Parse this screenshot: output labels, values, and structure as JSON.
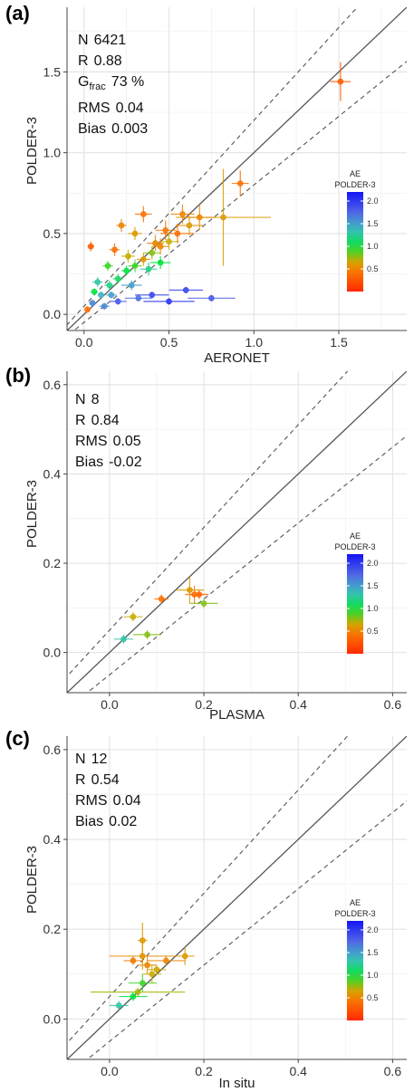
{
  "chart_data": [
    {
      "type": "scatter",
      "panel_label": "(a)",
      "xlabel": "AERONET",
      "ylabel": "POLDER-3",
      "xlim": [
        -0.1,
        1.9
      ],
      "ylim": [
        -0.1,
        1.9
      ],
      "xticks": [
        "0.0",
        "0.5",
        "1.0",
        "1.5"
      ],
      "yticks": [
        "0.0",
        "0.5",
        "1.0",
        "1.5"
      ],
      "xtick_values": [
        0,
        0.5,
        1.0,
        1.5
      ],
      "ytick_values": [
        0,
        0.5,
        1.0,
        1.5
      ],
      "grid": true,
      "lines": [
        "y = x",
        "y = x ± (0.05 + 0.15x)"
      ],
      "stats": [
        {
          "key": "N",
          "value": "6421"
        },
        {
          "key": "R",
          "value": "0.88"
        },
        {
          "key": "G",
          "sub": "frac",
          "value": "73 %"
        },
        {
          "key": "RMS",
          "value": "0.04"
        },
        {
          "key": "Bias",
          "value": "0.003"
        }
      ],
      "colorbar": {
        "title_line1": "AE",
        "title_line2": "POLDER-3",
        "ticks": [
          "2.0",
          "1.5",
          "1.0",
          "0.5"
        ],
        "tick_values": [
          2.0,
          1.5,
          1.0,
          0.5
        ],
        "min": 0.0,
        "max": 2.2,
        "position": "right"
      },
      "points": [
        {
          "x": 1.51,
          "y": 1.44,
          "xerr": 0.06,
          "yerr": 0.12,
          "ae": 0.3
        },
        {
          "x": 0.82,
          "y": 0.6,
          "xerr": 0.28,
          "yerr": 0.3,
          "ae": 0.6
        },
        {
          "x": 0.92,
          "y": 0.81,
          "xerr": 0.05,
          "yerr": 0.08,
          "ae": 0.4
        },
        {
          "x": 0.68,
          "y": 0.6,
          "xerr": 0.1,
          "yerr": 0.08,
          "ae": 0.5
        },
        {
          "x": 0.62,
          "y": 0.55,
          "xerr": 0.08,
          "yerr": 0.06,
          "ae": 0.6
        },
        {
          "x": 0.55,
          "y": 0.5,
          "xerr": 0.1,
          "yerr": 0.06,
          "ae": 0.4
        },
        {
          "x": 0.5,
          "y": 0.45,
          "xerr": 0.06,
          "yerr": 0.05,
          "ae": 0.7
        },
        {
          "x": 0.45,
          "y": 0.42,
          "xerr": 0.05,
          "yerr": 0.05,
          "ae": 0.5
        },
        {
          "x": 0.4,
          "y": 0.38,
          "xerr": 0.05,
          "yerr": 0.04,
          "ae": 0.8
        },
        {
          "x": 0.35,
          "y": 0.34,
          "xerr": 0.04,
          "yerr": 0.04,
          "ae": 0.6
        },
        {
          "x": 0.3,
          "y": 0.3,
          "xerr": 0.04,
          "yerr": 0.04,
          "ae": 0.9
        },
        {
          "x": 0.25,
          "y": 0.27,
          "xerr": 0.03,
          "yerr": 0.03,
          "ae": 1.0
        },
        {
          "x": 0.2,
          "y": 0.22,
          "xerr": 0.03,
          "yerr": 0.03,
          "ae": 1.1
        },
        {
          "x": 0.15,
          "y": 0.18,
          "xerr": 0.03,
          "yerr": 0.03,
          "ae": 1.2
        },
        {
          "x": 0.1,
          "y": 0.12,
          "xerr": 0.02,
          "yerr": 0.02,
          "ae": 1.4
        },
        {
          "x": 0.05,
          "y": 0.07,
          "xerr": 0.02,
          "yerr": 0.02,
          "ae": 1.6
        },
        {
          "x": 0.42,
          "y": 0.44,
          "xerr": 0.05,
          "yerr": 0.05,
          "ae": 0.5
        },
        {
          "x": 0.18,
          "y": 0.4,
          "xerr": 0.03,
          "yerr": 0.04,
          "ae": 0.4
        },
        {
          "x": 0.04,
          "y": 0.42,
          "xerr": 0.02,
          "yerr": 0.03,
          "ae": 0.3
        },
        {
          "x": 0.3,
          "y": 0.5,
          "xerr": 0.04,
          "yerr": 0.04,
          "ae": 0.6
        },
        {
          "x": 0.35,
          "y": 0.62,
          "xerr": 0.05,
          "yerr": 0.05,
          "ae": 0.4
        },
        {
          "x": 0.22,
          "y": 0.55,
          "xerr": 0.03,
          "yerr": 0.04,
          "ae": 0.5
        },
        {
          "x": 0.6,
          "y": 0.15,
          "xerr": 0.1,
          "yerr": 0.02,
          "ae": 1.9
        },
        {
          "x": 0.75,
          "y": 0.1,
          "xerr": 0.14,
          "yerr": 0.02,
          "ae": 1.8
        },
        {
          "x": 0.5,
          "y": 0.08,
          "xerr": 0.15,
          "yerr": 0.02,
          "ae": 2.0
        },
        {
          "x": 0.4,
          "y": 0.12,
          "xerr": 0.1,
          "yerr": 0.02,
          "ae": 1.9
        },
        {
          "x": 0.32,
          "y": 0.1,
          "xerr": 0.08,
          "yerr": 0.02,
          "ae": 1.7
        },
        {
          "x": 0.28,
          "y": 0.18,
          "xerr": 0.06,
          "yerr": 0.03,
          "ae": 1.5
        },
        {
          "x": 0.2,
          "y": 0.08,
          "xerr": 0.05,
          "yerr": 0.02,
          "ae": 1.8
        },
        {
          "x": 0.12,
          "y": 0.05,
          "xerr": 0.03,
          "yerr": 0.02,
          "ae": 1.6
        },
        {
          "x": 0.08,
          "y": 0.2,
          "xerr": 0.03,
          "yerr": 0.03,
          "ae": 1.3
        },
        {
          "x": 0.14,
          "y": 0.3,
          "xerr": 0.03,
          "yerr": 0.03,
          "ae": 0.9
        },
        {
          "x": 0.26,
          "y": 0.36,
          "xerr": 0.04,
          "yerr": 0.04,
          "ae": 0.7
        },
        {
          "x": 0.48,
          "y": 0.52,
          "xerr": 0.06,
          "yerr": 0.06,
          "ae": 0.45
        },
        {
          "x": 0.58,
          "y": 0.62,
          "xerr": 0.07,
          "yerr": 0.06,
          "ae": 0.5
        },
        {
          "x": 0.38,
          "y": 0.28,
          "xerr": 0.05,
          "yerr": 0.04,
          "ae": 1.2
        },
        {
          "x": 0.45,
          "y": 0.32,
          "xerr": 0.06,
          "yerr": 0.04,
          "ae": 1.0
        },
        {
          "x": 0.02,
          "y": 0.03,
          "xerr": 0.01,
          "yerr": 0.02,
          "ae": 0.4
        },
        {
          "x": 0.06,
          "y": 0.14,
          "xerr": 0.02,
          "yerr": 0.02,
          "ae": 1.0
        },
        {
          "x": 0.16,
          "y": 0.12,
          "xerr": 0.03,
          "yerr": 0.02,
          "ae": 1.5
        }
      ]
    },
    {
      "type": "scatter",
      "panel_label": "(b)",
      "xlabel": "PLASMA",
      "ylabel": "POLDER-3",
      "xlim": [
        -0.09,
        0.63
      ],
      "ylim": [
        -0.09,
        0.63
      ],
      "xticks": [
        "0.0",
        "0.2",
        "0.4",
        "0.6"
      ],
      "yticks": [
        "0.0",
        "0.2",
        "0.4",
        "0.6"
      ],
      "xtick_values": [
        0,
        0.2,
        0.4,
        0.6
      ],
      "ytick_values": [
        0,
        0.2,
        0.4,
        0.6
      ],
      "grid": true,
      "lines": [
        "y = x",
        "y = x ± (0.05 + 0.15x)"
      ],
      "stats": [
        {
          "key": "N",
          "value": "8"
        },
        {
          "key": "R",
          "value": "0.84"
        },
        {
          "key": "RMS",
          "value": "0.05"
        },
        {
          "key": "Bias",
          "value": "-0.02"
        }
      ],
      "colorbar": {
        "title_line1": "AE",
        "title_line2": "POLDER-3",
        "ticks": [
          "2.0",
          "1.5",
          "1.0",
          "0.5"
        ],
        "tick_values": [
          2.0,
          1.5,
          1.0,
          0.5
        ],
        "min": 0.0,
        "max": 2.2,
        "position": "right"
      },
      "points": [
        {
          "x": 0.03,
          "y": 0.03,
          "xerr": 0.02,
          "yerr": 0.01,
          "ae": 1.3
        },
        {
          "x": 0.05,
          "y": 0.08,
          "xerr": 0.02,
          "yerr": 0.01,
          "ae": 0.7
        },
        {
          "x": 0.08,
          "y": 0.04,
          "xerr": 0.03,
          "yerr": 0.01,
          "ae": 0.8
        },
        {
          "x": 0.11,
          "y": 0.12,
          "xerr": 0.015,
          "yerr": 0.01,
          "ae": 0.4
        },
        {
          "x": 0.17,
          "y": 0.14,
          "xerr": 0.03,
          "yerr": 0.03,
          "ae": 0.6
        },
        {
          "x": 0.18,
          "y": 0.13,
          "xerr": 0.02,
          "yerr": 0.02,
          "ae": 0.4
        },
        {
          "x": 0.19,
          "y": 0.13,
          "xerr": 0.02,
          "yerr": 0.01,
          "ae": 0.35
        },
        {
          "x": 0.2,
          "y": 0.11,
          "xerr": 0.03,
          "yerr": 0.01,
          "ae": 0.8
        }
      ]
    },
    {
      "type": "scatter",
      "panel_label": "(c)",
      "xlabel": "In situ",
      "ylabel": "POLDER-3",
      "xlim": [
        -0.09,
        0.63
      ],
      "ylim": [
        -0.09,
        0.63
      ],
      "xticks": [
        "0.0",
        "0.2",
        "0.4",
        "0.6"
      ],
      "yticks": [
        "0.0",
        "0.2",
        "0.4",
        "0.6"
      ],
      "xtick_values": [
        0,
        0.2,
        0.4,
        0.6
      ],
      "ytick_values": [
        0,
        0.2,
        0.4,
        0.6
      ],
      "grid": true,
      "lines": [
        "y = x",
        "y = x ± (0.05 + 0.15x)"
      ],
      "stats": [
        {
          "key": "N",
          "value": "12"
        },
        {
          "key": "R",
          "value": "0.54"
        },
        {
          "key": "RMS",
          "value": "0.04"
        },
        {
          "key": "Bias",
          "value": "0.02"
        }
      ],
      "colorbar": {
        "title_line1": "AE",
        "title_line2": "POLDER-3",
        "ticks": [
          "2.0",
          "1.5",
          "1.0",
          "0.5"
        ],
        "tick_values": [
          2.0,
          1.5,
          1.0,
          0.5
        ],
        "min": 0.0,
        "max": 2.2,
        "position": "right"
      },
      "points": [
        {
          "x": 0.02,
          "y": 0.03,
          "xerr": 0.02,
          "yerr": 0.01,
          "ae": 1.3
        },
        {
          "x": 0.05,
          "y": 0.05,
          "xerr": 0.03,
          "yerr": 0.01,
          "ae": 1.0
        },
        {
          "x": 0.06,
          "y": 0.06,
          "xerr": 0.1,
          "yerr": 0.01,
          "ae": 0.75
        },
        {
          "x": 0.07,
          "y": 0.08,
          "xerr": 0.03,
          "yerr": 0.02,
          "ae": 0.9
        },
        {
          "x": 0.05,
          "y": 0.13,
          "xerr": 0.02,
          "yerr": 0.01,
          "ae": 0.45
        },
        {
          "x": 0.07,
          "y": 0.14,
          "xerr": 0.07,
          "yerr": 0.03,
          "ae": 0.55
        },
        {
          "x": 0.07,
          "y": 0.175,
          "xerr": 0.01,
          "yerr": 0.04,
          "ae": 0.6
        },
        {
          "x": 0.08,
          "y": 0.12,
          "xerr": 0.02,
          "yerr": 0.02,
          "ae": 0.5
        },
        {
          "x": 0.09,
          "y": 0.1,
          "xerr": 0.02,
          "yerr": 0.02,
          "ae": 0.7
        },
        {
          "x": 0.1,
          "y": 0.11,
          "xerr": 0.02,
          "yerr": 0.01,
          "ae": 0.65
        },
        {
          "x": 0.12,
          "y": 0.13,
          "xerr": 0.04,
          "yerr": 0.01,
          "ae": 0.5
        },
        {
          "x": 0.16,
          "y": 0.14,
          "xerr": 0.02,
          "yerr": 0.02,
          "ae": 0.6
        }
      ]
    }
  ]
}
